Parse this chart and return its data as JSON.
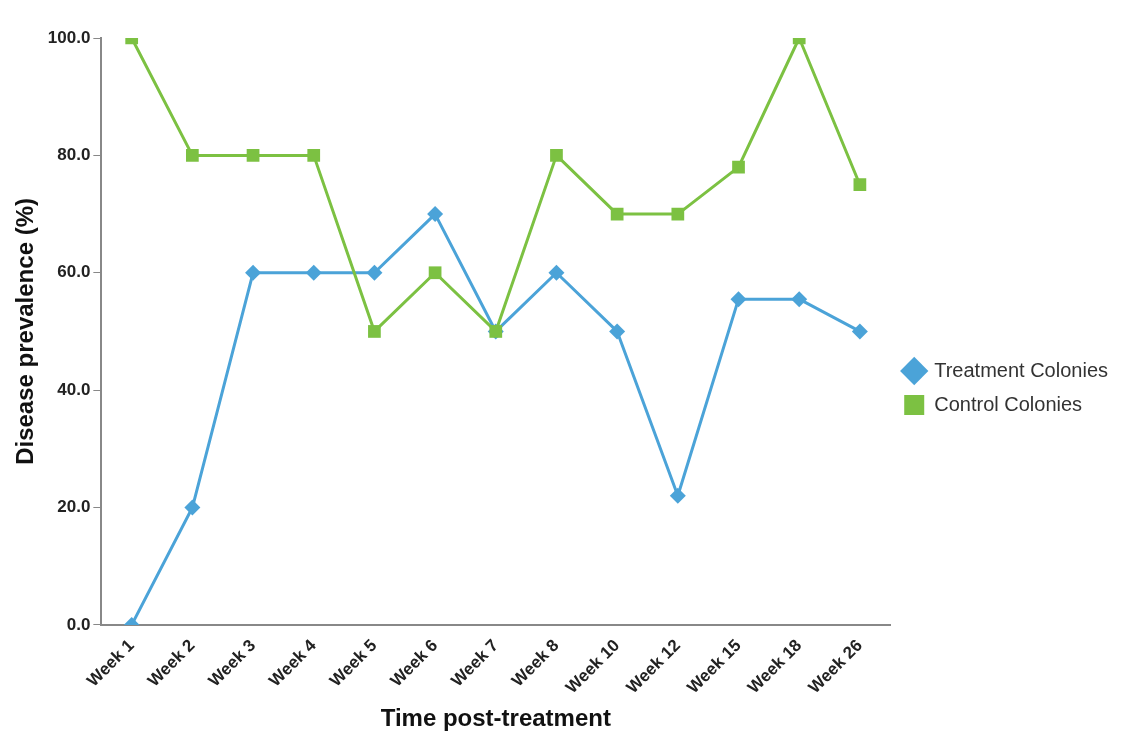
{
  "chart_data": {
    "type": "line",
    "xlabel": "Time post-treatment",
    "ylabel": "Disease prevalence (%)",
    "categories": [
      "Week 1",
      "Week 2",
      "Week 3",
      "Week 4",
      "Week 5",
      "Week 6",
      "Week 7",
      "Week 8",
      "Week 10",
      "Week 12",
      "Week 15",
      "Week 18",
      "Week 26"
    ],
    "series": [
      {
        "name": "Treatment Colonies",
        "color": "#4ba3d8",
        "marker": "diamond",
        "values": [
          0,
          20,
          60,
          60,
          60,
          70,
          50,
          60,
          50,
          22,
          55.5,
          55.5,
          50
        ]
      },
      {
        "name": "Control Colonies",
        "color": "#7cc142",
        "marker": "square",
        "values": [
          100,
          80,
          80,
          80,
          50,
          60,
          50,
          80,
          70,
          70,
          78,
          100,
          75
        ]
      }
    ],
    "ylim": [
      0,
      100
    ],
    "yticks": [
      {
        "value": 0,
        "label": "0.0"
      },
      {
        "value": 20,
        "label": "20.0"
      },
      {
        "value": 40,
        "label": "40.0"
      },
      {
        "value": 60,
        "label": "60.0"
      },
      {
        "value": 80,
        "label": "80.0"
      },
      {
        "value": 100,
        "label": "100.0"
      }
    ],
    "grid": false,
    "legend": "right",
    "line_style": "solid"
  }
}
